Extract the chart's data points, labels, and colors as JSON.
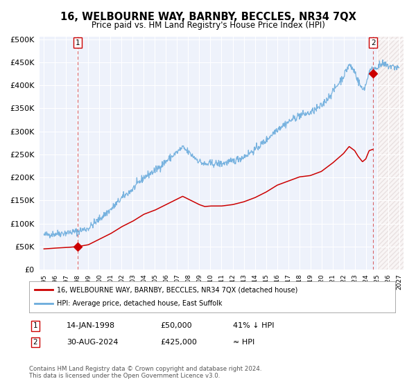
{
  "title": "16, WELBOURNE WAY, BARNBY, BECCLES, NR34 7QX",
  "subtitle": "Price paid vs. HM Land Registry's House Price Index (HPI)",
  "legend_line1": "16, WELBOURNE WAY, BARNBY, BECCLES, NR34 7QX (detached house)",
  "legend_line2": "HPI: Average price, detached house, East Suffolk",
  "annotation1_date": "14-JAN-1998",
  "annotation1_price": "£50,000",
  "annotation1_note": "41% ↓ HPI",
  "annotation2_date": "30-AUG-2024",
  "annotation2_price": "£425,000",
  "annotation2_note": "≈ HPI",
  "footer": "Contains HM Land Registry data © Crown copyright and database right 2024.\nThis data is licensed under the Open Government Licence v3.0.",
  "sale_color": "#cc0000",
  "hpi_color": "#6aabdc",
  "background_color": "#eef2fb",
  "ylim": [
    0,
    500000
  ],
  "yticks": [
    0,
    50000,
    100000,
    150000,
    200000,
    250000,
    300000,
    350000,
    400000,
    450000,
    500000
  ],
  "ytick_labels": [
    "£0",
    "£50K",
    "£100K",
    "£150K",
    "£200K",
    "£250K",
    "£300K",
    "£350K",
    "£400K",
    "£450K",
    "£500K"
  ],
  "sale1_year": 1998.04,
  "sale1_price": 50000,
  "sale2_year": 2024.66,
  "sale2_price": 425000,
  "xmin": 1995,
  "xmax": 2027,
  "future_start": 2025.1
}
